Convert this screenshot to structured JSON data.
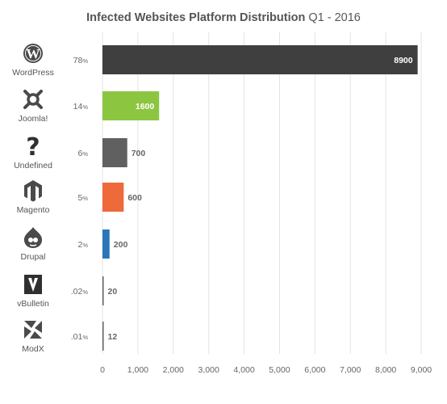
{
  "chart_data": {
    "type": "bar",
    "orientation": "horizontal",
    "title": "Infected Websites Platform Distribution",
    "subtitle": "Q1 - 2016",
    "categories": [
      "WordPress",
      "Joomla!",
      "Undefined",
      "Magento",
      "Drupal",
      "vBulletin",
      "ModX"
    ],
    "values": [
      8900,
      1600,
      700,
      600,
      200,
      20,
      12
    ],
    "value_labels": [
      "8900",
      "1600",
      "700",
      "600",
      "200",
      "20",
      "12"
    ],
    "percent_labels": [
      "78",
      "14",
      "6",
      "5",
      "2",
      ".02",
      ".01"
    ],
    "percent_sign": "%",
    "bar_colors": [
      "#3f3f3f",
      "#8cc641",
      "#606060",
      "#ee6a3b",
      "#2a76b9",
      "#606060",
      "#606060"
    ],
    "icons": [
      "wordpress-icon",
      "joomla-icon",
      "question-mark-icon",
      "magento-icon",
      "drupal-icon",
      "vbulletin-icon",
      "modx-icon"
    ],
    "xlim": [
      0,
      9000
    ],
    "xticks": [
      0,
      1000,
      2000,
      3000,
      4000,
      5000,
      6000,
      7000,
      8000,
      9000
    ],
    "xtick_labels": [
      "0",
      "1,000",
      "2,000",
      "3,000",
      "4,000",
      "5,000",
      "6,000",
      "7,000",
      "8,000",
      "9,000"
    ],
    "grid": true,
    "legend": "none",
    "grid_color": "#e3e3e3",
    "icon_color": "#4a4a4a"
  }
}
